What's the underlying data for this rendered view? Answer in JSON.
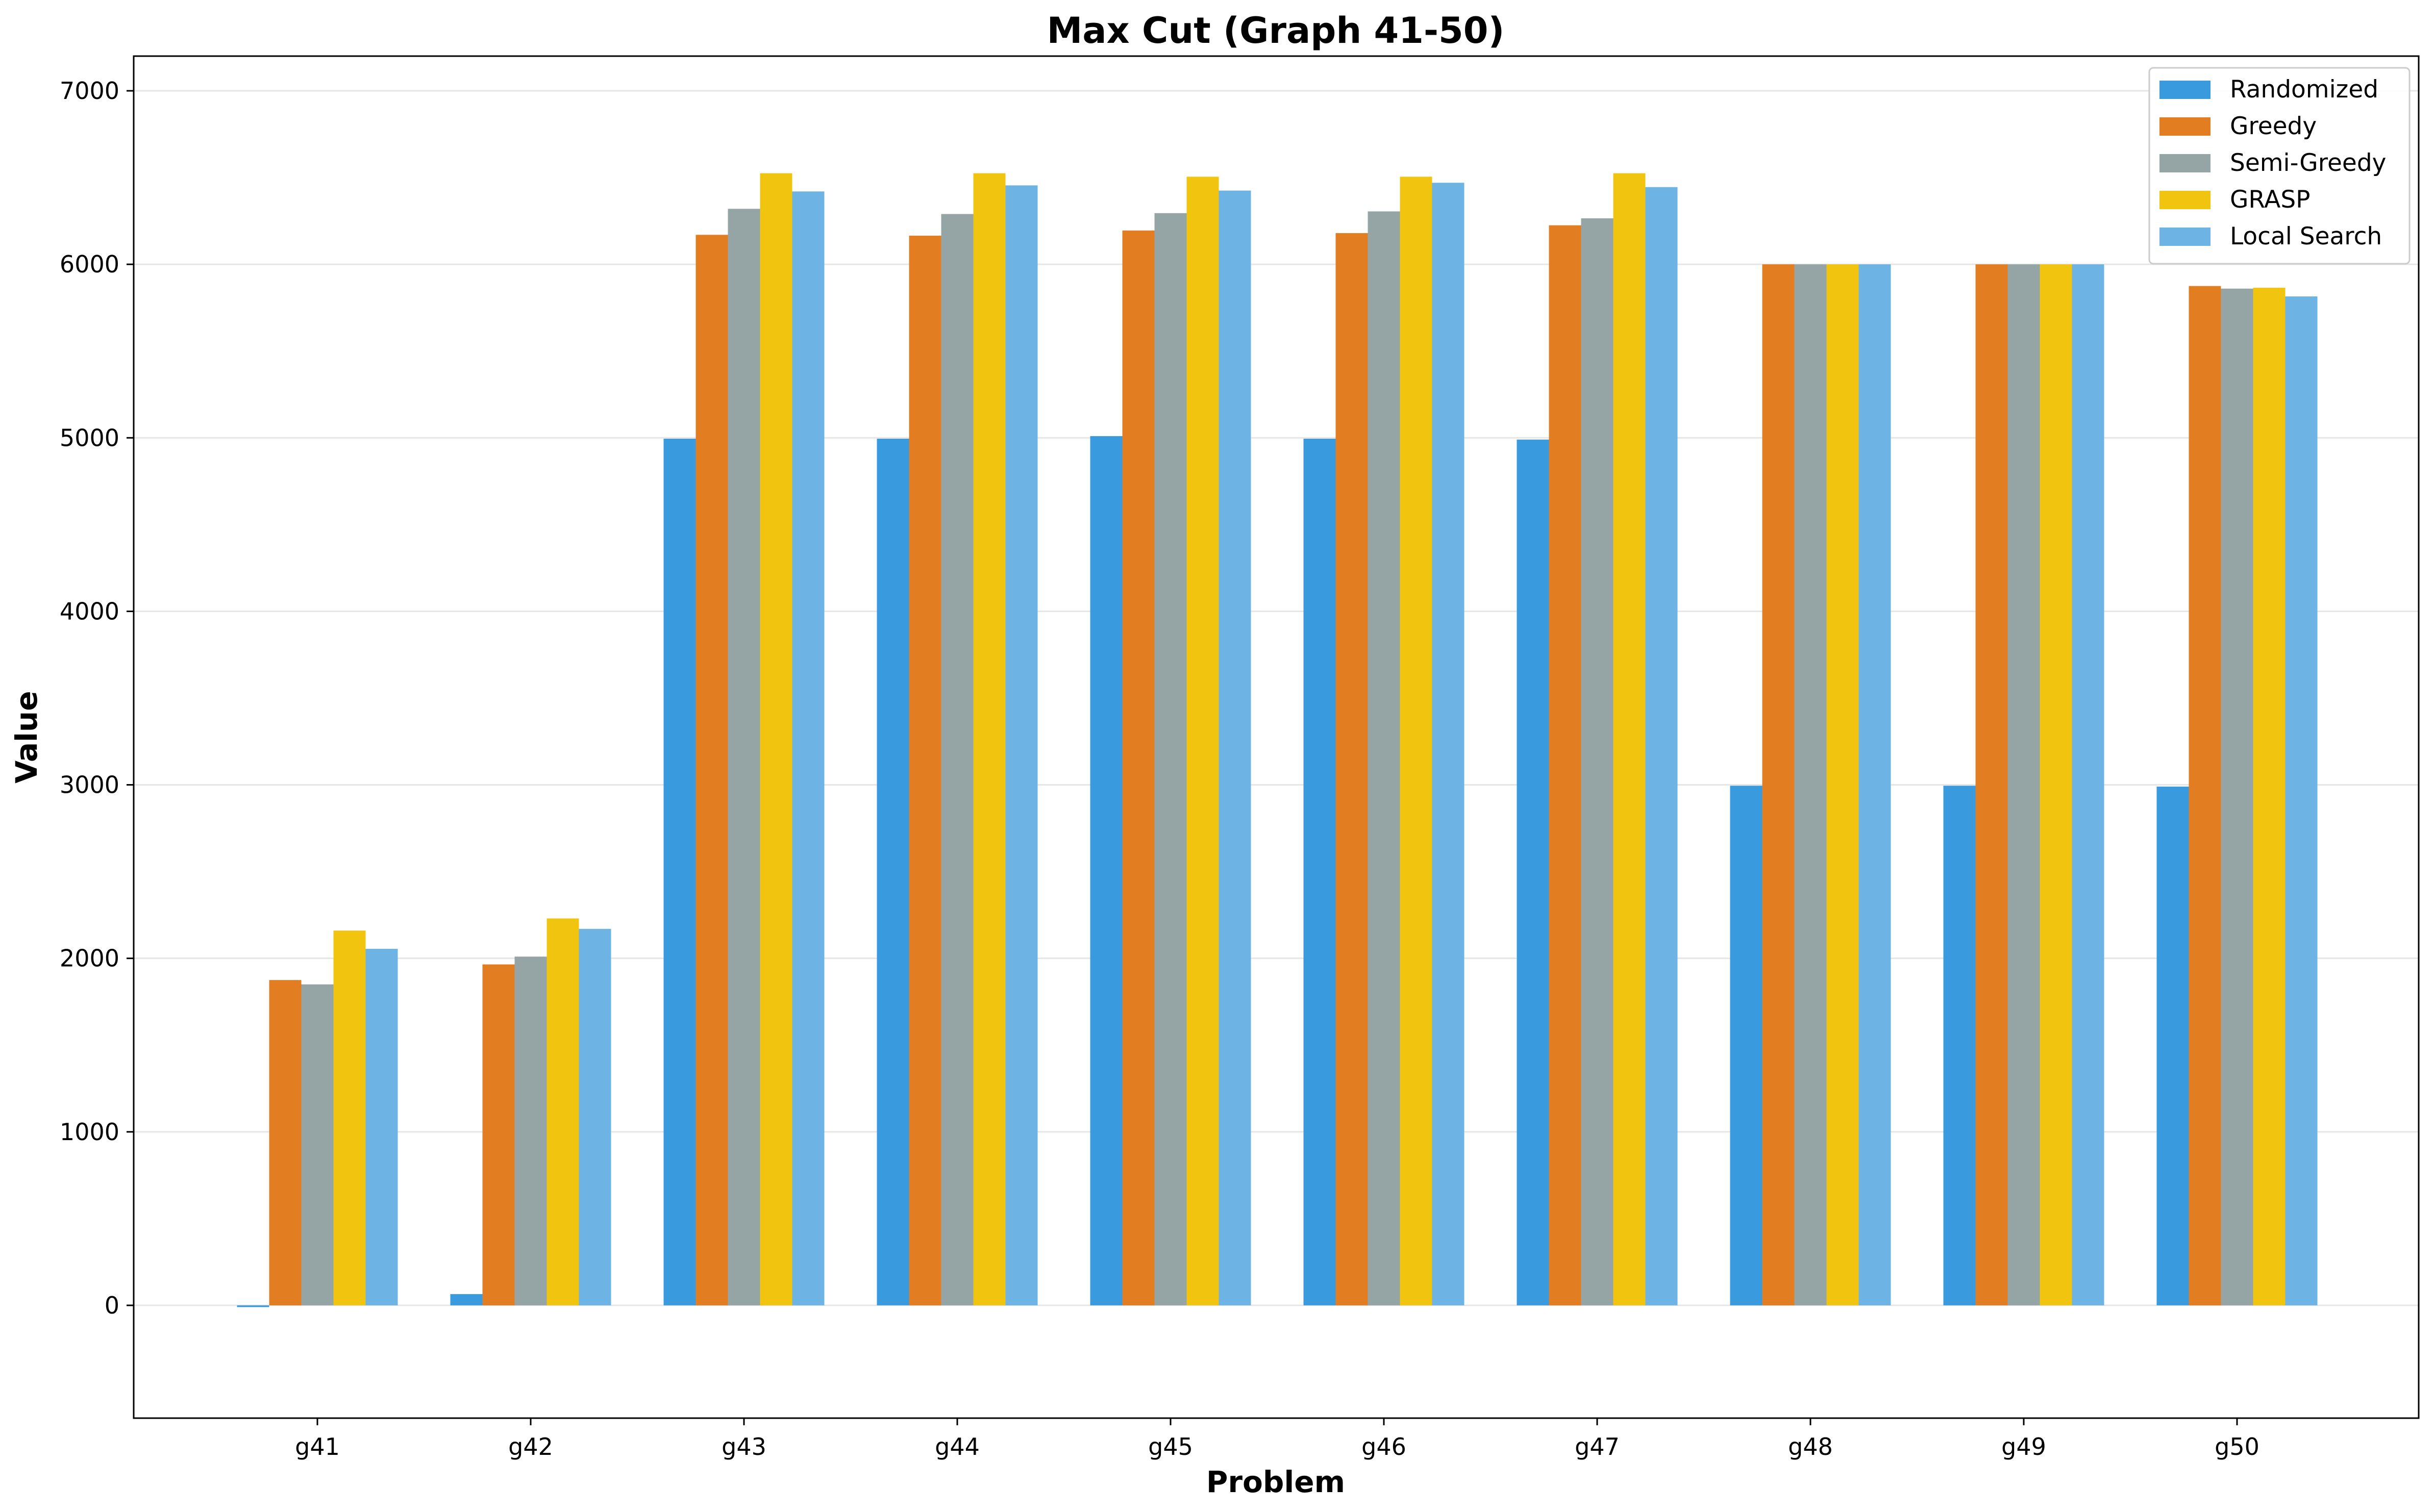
{
  "chart_data": {
    "type": "bar",
    "title": "Max Cut (Graph 41-50)",
    "xlabel": "Problem",
    "ylabel": "Value",
    "categories": [
      "g41",
      "g42",
      "g43",
      "g44",
      "g45",
      "g46",
      "g47",
      "g48",
      "g49",
      "g50"
    ],
    "ylim": [
      -650,
      7200
    ],
    "yticks": [
      0,
      1000,
      2000,
      3000,
      4000,
      5000,
      6000,
      7000
    ],
    "grid": "horizontal",
    "legend_position": "top-right",
    "series": [
      {
        "name": "Randomized",
        "color": "#3a9ade",
        "values": [
          -10,
          65,
          4995,
          4995,
          5010,
          4995,
          4990,
          2995,
          2995,
          2990
        ]
      },
      {
        "name": "Greedy",
        "color": "#e37d22",
        "values": [
          1875,
          1965,
          6170,
          6165,
          6195,
          6180,
          6225,
          6000,
          6000,
          5875
        ]
      },
      {
        "name": "Semi-Greedy",
        "color": "#95a5a6",
        "values": [
          1850,
          2010,
          6320,
          6290,
          6295,
          6305,
          6265,
          6000,
          6000,
          5860
        ]
      },
      {
        "name": "GRASP",
        "color": "#f1c40f",
        "values": [
          2160,
          2230,
          6525,
          6525,
          6505,
          6505,
          6525,
          6000,
          6000,
          5865
        ]
      },
      {
        "name": "Local Search",
        "color": "#6db3e4",
        "values": [
          2055,
          2170,
          6420,
          6455,
          6425,
          6470,
          6445,
          6000,
          6000,
          5815
        ]
      }
    ]
  }
}
